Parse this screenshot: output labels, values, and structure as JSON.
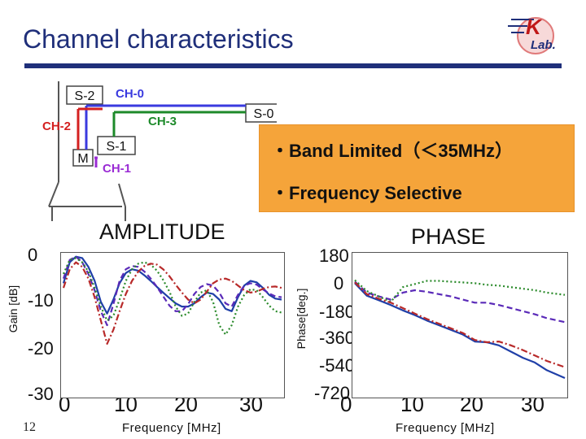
{
  "slide": {
    "title": "Channel characteristics",
    "page_number": "12",
    "bullets": [
      "・Band Limited（＜35MHz）",
      "・Frequency Selective"
    ],
    "accent_color": "#1f2f7a",
    "box_color": "#f5a43a"
  },
  "logo": {
    "text": "KLab.",
    "icon": "k-lab-logo"
  },
  "diagram": {
    "nodes": [
      "S-2",
      "S-0",
      "S-1",
      "M"
    ],
    "channels": [
      {
        "label": "CH-0",
        "color": "#3a3adf"
      },
      {
        "label": "CH-3",
        "color": "#1d8a2a"
      },
      {
        "label": "CH-2",
        "color": "#d42020"
      },
      {
        "label": "CH-1",
        "color": "#9a2bd4"
      }
    ]
  },
  "amplitude": {
    "title": "AMPLITUDE",
    "ylabel": "Gain [dB]",
    "xlabel": "Frequency [MHz]",
    "yticks": [
      "0",
      "-10",
      "-20",
      "-30"
    ],
    "xticks": [
      "0",
      "10",
      "20",
      "30"
    ]
  },
  "phase": {
    "title": "PHASE",
    "ylabel": "Phase[deg.]",
    "xlabel": "Frequency [MHz]",
    "yticks": [
      "180",
      "0",
      "-180",
      "-360",
      "-540",
      "-720"
    ],
    "xticks": [
      "0",
      "10",
      "20",
      "30"
    ]
  },
  "chart_data": [
    {
      "type": "line",
      "title": "AMPLITUDE",
      "xlabel": "Frequency [MHz]",
      "ylabel": "Gain [dB]",
      "xlim": [
        0,
        35
      ],
      "ylim": [
        -30,
        0
      ],
      "series": [
        {
          "color": "#1f3fa8",
          "style": "solid",
          "x": [
            0,
            1,
            2,
            3,
            4,
            5,
            6,
            7,
            8,
            9,
            10,
            11,
            12,
            13,
            14,
            15,
            16,
            17,
            18,
            19,
            20,
            21,
            22,
            23,
            24,
            25,
            26,
            27,
            28,
            29,
            30,
            31,
            32,
            33,
            34,
            35
          ],
          "y": [
            -6,
            -1.5,
            -0.3,
            -0.6,
            -2.5,
            -5.5,
            -10,
            -12.5,
            -9.5,
            -6,
            -3.8,
            -3,
            -3.3,
            -4.3,
            -5.5,
            -6.8,
            -8,
            -9.2,
            -10.3,
            -11,
            -11,
            -10.3,
            -9,
            -8,
            -8.3,
            -9.5,
            -11.5,
            -12,
            -9,
            -6.5,
            -5.5,
            -5.8,
            -7,
            -8.5,
            -9.3,
            -9.5
          ]
        },
        {
          "color": "#5a2ab8",
          "style": "dash",
          "x": [
            0,
            1,
            2,
            3,
            4,
            5,
            6,
            7,
            8,
            9,
            10,
            11,
            12,
            13,
            14,
            15,
            16,
            17,
            18,
            19,
            20,
            21,
            22,
            23,
            24,
            25,
            26,
            27,
            28,
            29,
            30,
            31,
            32,
            33,
            34,
            35
          ],
          "y": [
            -5,
            -1,
            -0.3,
            -1.5,
            -4,
            -7.5,
            -12,
            -15,
            -10.5,
            -5.5,
            -3,
            -2.3,
            -2.5,
            -3.5,
            -5,
            -6.8,
            -8.8,
            -10.8,
            -12,
            -12,
            -10.5,
            -8.3,
            -6.8,
            -6.2,
            -6.5,
            -8,
            -10.3,
            -11,
            -8.5,
            -6.5,
            -6,
            -6.3,
            -7.3,
            -8.2,
            -8.8,
            -9
          ]
        },
        {
          "color": "#2a8a2a",
          "style": "dot",
          "x": [
            0,
            1,
            2,
            3,
            4,
            5,
            6,
            7,
            8,
            9,
            10,
            11,
            12,
            13,
            14,
            15,
            16,
            17,
            18,
            19,
            20,
            21,
            22,
            23,
            24,
            25,
            26,
            27,
            28,
            29,
            30,
            31,
            32,
            33,
            34,
            35
          ],
          "y": [
            -4,
            -1,
            -0.6,
            -1.5,
            -3.5,
            -7,
            -11,
            -14,
            -13,
            -9.5,
            -5.5,
            -3,
            -1.8,
            -1.5,
            -2,
            -3.3,
            -5.3,
            -7.8,
            -11,
            -13,
            -12.5,
            -10,
            -8,
            -7.5,
            -10,
            -15,
            -17,
            -15,
            -11,
            -8.5,
            -7.3,
            -7.5,
            -9,
            -10.8,
            -12,
            -12.3
          ]
        },
        {
          "color": "#b82a2a",
          "style": "dashdot",
          "x": [
            0,
            1,
            2,
            3,
            4,
            5,
            6,
            7,
            8,
            9,
            10,
            11,
            12,
            13,
            14,
            15,
            16,
            17,
            18,
            19,
            20,
            21,
            22,
            23,
            24,
            25,
            26,
            27,
            28,
            29,
            30,
            31,
            32,
            33,
            34,
            35
          ],
          "y": [
            -7,
            -3,
            -1.5,
            -2.5,
            -5,
            -9,
            -14,
            -19,
            -16,
            -12,
            -8.3,
            -5.5,
            -3.5,
            -2.3,
            -1.8,
            -2,
            -3,
            -4.5,
            -6.3,
            -8,
            -9.5,
            -10.3,
            -9.5,
            -7.8,
            -6,
            -5.2,
            -5,
            -5.5,
            -6.5,
            -7.5,
            -8,
            -7.8,
            -7.2,
            -6.8,
            -6.7,
            -7
          ]
        }
      ]
    },
    {
      "type": "line",
      "title": "PHASE",
      "xlabel": "Frequency [MHz]",
      "ylabel": "Phase[deg.]",
      "xlim": [
        0,
        35
      ],
      "ylim": [
        -720,
        180
      ],
      "series": [
        {
          "color": "#1f3fa8",
          "style": "solid",
          "x": [
            0,
            2,
            4,
            6,
            8,
            10,
            12,
            14,
            16,
            18,
            20,
            22,
            24,
            26,
            28,
            30,
            32,
            35
          ],
          "y": [
            0,
            -80,
            -110,
            -140,
            -175,
            -205,
            -240,
            -270,
            -300,
            -330,
            -375,
            -380,
            -400,
            -440,
            -480,
            -510,
            -560,
            -610
          ]
        },
        {
          "color": "#5a2ab8",
          "style": "dash",
          "x": [
            0,
            2,
            4,
            6,
            8,
            10,
            12,
            14,
            16,
            18,
            20,
            22,
            24,
            26,
            28,
            30,
            32,
            35
          ],
          "y": [
            10,
            -60,
            -85,
            -105,
            -60,
            -45,
            -55,
            -70,
            -85,
            -105,
            -125,
            -125,
            -140,
            -160,
            -180,
            -200,
            -225,
            -250
          ]
        },
        {
          "color": "#2a8a2a",
          "style": "dot",
          "x": [
            0,
            2,
            4,
            6,
            8,
            10,
            12,
            14,
            16,
            18,
            20,
            22,
            24,
            26,
            28,
            30,
            32,
            35
          ],
          "y": [
            20,
            -50,
            -85,
            -120,
            -25,
            -5,
            15,
            15,
            10,
            5,
            0,
            -10,
            -15,
            -25,
            -35,
            -45,
            -60,
            -75
          ]
        },
        {
          "color": "#b82a2a",
          "style": "dashdot",
          "x": [
            0,
            2,
            4,
            6,
            8,
            10,
            12,
            14,
            16,
            18,
            20,
            22,
            24,
            26,
            28,
            30,
            32,
            35
          ],
          "y": [
            5,
            -70,
            -100,
            -125,
            -160,
            -195,
            -230,
            -260,
            -290,
            -320,
            -365,
            -380,
            -375,
            -400,
            -430,
            -465,
            -500,
            -540
          ]
        }
      ]
    }
  ]
}
